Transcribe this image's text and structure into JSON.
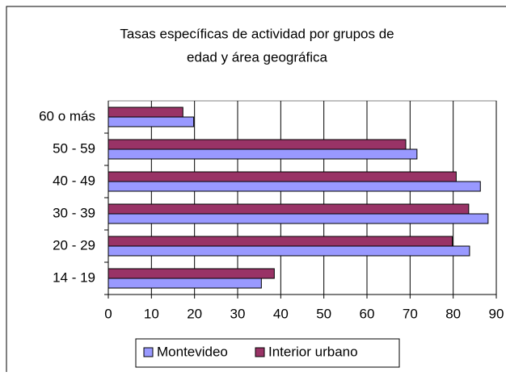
{
  "chart_data": {
    "type": "hbar",
    "title": [
      "Tasas específicas de actividad por grupos de",
      "edad y área geográfica"
    ],
    "categories": [
      "14 - 19",
      "20 - 29",
      "30 - 39",
      "40 - 49",
      "50 - 59",
      "60 o más"
    ],
    "series": [
      {
        "name": "Montevideo",
        "color": "#9999ff",
        "values": [
          35.5,
          83.8,
          88.1,
          86.3,
          71.6,
          19.8
        ]
      },
      {
        "name": "Interior urbano",
        "color": "#993366",
        "values": [
          38.5,
          79.8,
          83.6,
          80.7,
          69.0,
          17.3
        ]
      }
    ],
    "xlim": [
      0,
      90
    ],
    "xticks": [
      0,
      10,
      20,
      30,
      40,
      50,
      60,
      70,
      80,
      90
    ],
    "grid": true,
    "legend": "bottom"
  }
}
